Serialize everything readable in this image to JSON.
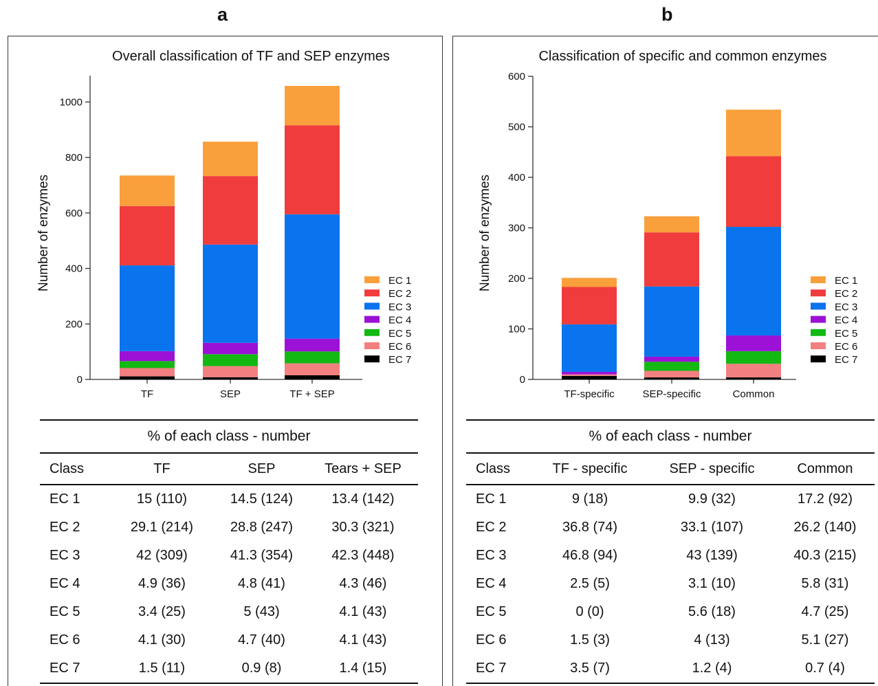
{
  "panels": [
    {
      "letter": "a"
    },
    {
      "letter": "b"
    }
  ],
  "chart_data": [
    {
      "type": "bar",
      "stacked": true,
      "title": "Overall classification of TF and SEP enzymes",
      "ylabel": "Number of enzymes",
      "xlabel": "",
      "ylim": [
        0,
        1100
      ],
      "yticks": [
        0,
        200,
        400,
        600,
        800,
        1000
      ],
      "categories": [
        "TF",
        "SEP",
        "TF + SEP"
      ],
      "legend_position": "right",
      "series": [
        {
          "name": "EC 7",
          "color": "#000000",
          "values": [
            11,
            8,
            15
          ]
        },
        {
          "name": "EC 6",
          "color": "#f28080",
          "values": [
            30,
            40,
            43
          ]
        },
        {
          "name": "EC 5",
          "color": "#13b813",
          "values": [
            25,
            43,
            43
          ]
        },
        {
          "name": "EC 4",
          "color": "#9b12d6",
          "values": [
            36,
            41,
            46
          ]
        },
        {
          "name": "EC 3",
          "color": "#0a73ee",
          "values": [
            309,
            354,
            448
          ]
        },
        {
          "name": "EC 2",
          "color": "#f03c3c",
          "values": [
            214,
            247,
            321
          ]
        },
        {
          "name": "EC 1",
          "color": "#f9a03c",
          "values": [
            110,
            124,
            142
          ]
        }
      ]
    },
    {
      "type": "bar",
      "stacked": true,
      "title": "Classification of specific and common enzymes",
      "ylabel": "Number of enzymes",
      "xlabel": "",
      "ylim": [
        0,
        600
      ],
      "yticks": [
        0,
        100,
        200,
        300,
        400,
        500,
        600
      ],
      "categories": [
        "TF-specific",
        "SEP-specific",
        "Common"
      ],
      "legend_position": "right",
      "series": [
        {
          "name": "EC 7",
          "color": "#000000",
          "values": [
            7,
            4,
            4
          ]
        },
        {
          "name": "EC 6",
          "color": "#f28080",
          "values": [
            3,
            13,
            27
          ]
        },
        {
          "name": "EC 5",
          "color": "#13b813",
          "values": [
            0,
            18,
            25
          ]
        },
        {
          "name": "EC 4",
          "color": "#9b12d6",
          "values": [
            5,
            10,
            31
          ]
        },
        {
          "name": "EC 3",
          "color": "#0a73ee",
          "values": [
            94,
            139,
            215
          ]
        },
        {
          "name": "EC 2",
          "color": "#f03c3c",
          "values": [
            74,
            107,
            140
          ]
        },
        {
          "name": "EC 1",
          "color": "#f9a03c",
          "values": [
            18,
            32,
            92
          ]
        }
      ]
    }
  ],
  "tables": [
    {
      "caption": "% of each class - number",
      "headers": [
        "Class",
        "TF",
        "SEP",
        "Tears + SEP"
      ],
      "rows": [
        [
          "EC 1",
          "15 (110)",
          "14.5 (124)",
          "13.4 (142)"
        ],
        [
          "EC 2",
          "29.1 (214)",
          "28.8 (247)",
          "30.3 (321)"
        ],
        [
          "EC 3",
          "42 (309)",
          "41.3 (354)",
          "42.3 (448)"
        ],
        [
          "EC 4",
          "4.9 (36)",
          "4.8 (41)",
          "4.3 (46)"
        ],
        [
          "EC 5",
          "3.4 (25)",
          "5 (43)",
          "4.1 (43)"
        ],
        [
          "EC 6",
          "4.1 (30)",
          "4.7 (40)",
          "4.1 (43)"
        ],
        [
          "EC 7",
          "1.5 (11)",
          "0.9 (8)",
          "1.4 (15)"
        ]
      ]
    },
    {
      "caption": "% of each class - number",
      "headers": [
        "Class",
        "TF - specific",
        "SEP - specific",
        "Common"
      ],
      "rows": [
        [
          "EC 1",
          "9 (18)",
          "9.9 (32)",
          "17.2 (92)"
        ],
        [
          "EC 2",
          "36.8 (74)",
          "33.1 (107)",
          "26.2 (140)"
        ],
        [
          "EC 3",
          "46.8 (94)",
          "43 (139)",
          "40.3 (215)"
        ],
        [
          "EC 4",
          "2.5 (5)",
          "3.1 (10)",
          "5.8 (31)"
        ],
        [
          "EC 5",
          "0 (0)",
          "5.6 (18)",
          "4.7 (25)"
        ],
        [
          "EC 6",
          "1.5 (3)",
          "4 (13)",
          "5.1 (27)"
        ],
        [
          "EC 7",
          "3.5 (7)",
          "1.2 (4)",
          "0.7 (4)"
        ]
      ]
    }
  ]
}
